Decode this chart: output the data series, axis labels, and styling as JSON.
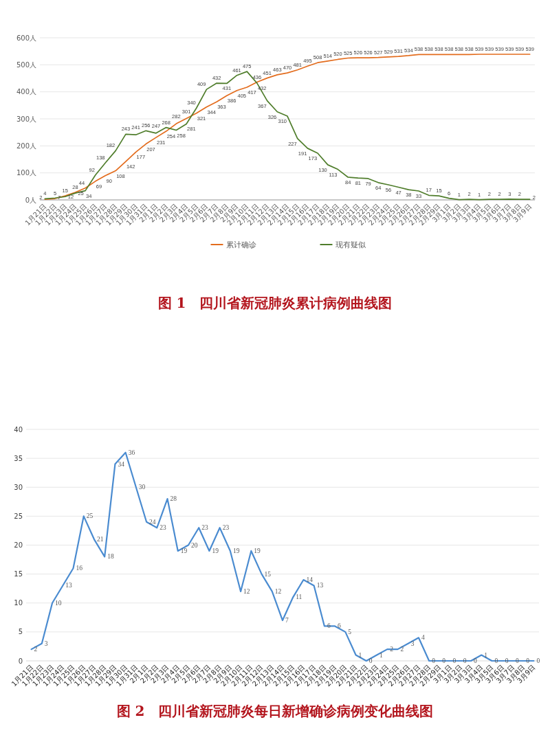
{
  "chart_data": [
    {
      "type": "line",
      "title": "图 1　四川省新冠肺炎累计病例曲线图",
      "categories": [
        "1月21日",
        "1月22日",
        "1月23日",
        "1月24日",
        "1月25日",
        "1月26日",
        "1月27日",
        "1月28日",
        "1月29日",
        "1月30日",
        "1月31日",
        "2月1日",
        "2月2日",
        "2月3日",
        "2月4日",
        "2月5日",
        "2月6日",
        "2月7日",
        "2月8日",
        "2月9日",
        "2月10日",
        "2月11日",
        "2月12日",
        "2月13日",
        "2月14日",
        "2月15日",
        "2月16日",
        "2月17日",
        "2月18日",
        "2月19日",
        "2月20日",
        "2月21日",
        "2月22日",
        "2月23日",
        "2月24日",
        "2月25日",
        "2月26日",
        "2月27日",
        "2月28日",
        "2月29日",
        "3月1日",
        "3月2日",
        "3月3日",
        "3月4日",
        "3月5日",
        "3月6日",
        "3月7日",
        "3月8日",
        "3月9日"
      ],
      "series": [
        {
          "name": "累计确诊",
          "color": "#e36c1d",
          "values": [
            2,
            5,
            15,
            28,
            44,
            69,
            90,
            108,
            142,
            177,
            207,
            231,
            254,
            282,
            301,
            321,
            344,
            363,
            386,
            405,
            417,
            436,
            451,
            463,
            470,
            481,
            495,
            508,
            514,
            520,
            525,
            526,
            526,
            527,
            529,
            531,
            534,
            538,
            538,
            538,
            538,
            538,
            538,
            539,
            539,
            539,
            539,
            539,
            539
          ]
        },
        {
          "name": "现有疑似",
          "color": "#4f7d2b",
          "values": [
            4,
            7,
            12,
            25,
            34,
            92,
            138,
            182,
            243,
            241,
            256,
            247,
            268,
            258,
            281,
            340,
            409,
            432,
            431,
            461,
            475,
            432,
            367,
            326,
            310,
            227,
            191,
            173,
            130,
            113,
            84,
            81,
            79,
            64,
            56,
            47,
            38,
            33,
            17,
            15,
            6,
            1,
            2,
            1,
            2,
            2,
            3,
            2,
            2
          ]
        }
      ],
      "ylim": [
        0,
        600
      ],
      "yticks": [
        {
          "value": 0,
          "label": "0人"
        },
        {
          "value": 100,
          "label": "100人"
        },
        {
          "value": 200,
          "label": "200人"
        },
        {
          "value": 300,
          "label": "300人"
        },
        {
          "value": 400,
          "label": "400人"
        },
        {
          "value": 500,
          "label": "500人"
        },
        {
          "value": 600,
          "label": "600人"
        }
      ],
      "grid": "y",
      "legend": "bottom",
      "data_labels": true
    },
    {
      "type": "line",
      "title": "图 2　四川省新冠肺炎每日新增确诊病例变化曲线图",
      "categories": [
        "1月21日",
        "1月22日",
        "1月23日",
        "1月24日",
        "1月25日",
        "1月26日",
        "1月27日",
        "1月28日",
        "1月29日",
        "1月30日",
        "1月31日",
        "2月1日",
        "2月2日",
        "2月3日",
        "2月4日",
        "2月5日",
        "2月6日",
        "2月7日",
        "2月8日",
        "2月9日",
        "2月10日",
        "2月11日",
        "2月12日",
        "2月13日",
        "2月14日",
        "2月15日",
        "2月16日",
        "2月17日",
        "2月18日",
        "2月19日",
        "2月20日",
        "2月21日",
        "2月22日",
        "2月23日",
        "2月24日",
        "2月25日",
        "2月26日",
        "2月27日",
        "2月28日",
        "2月29日",
        "3月1日",
        "3月2日",
        "3月3日",
        "3月4日",
        "3月5日",
        "3月6日",
        "3月7日",
        "3月8日",
        "3月9日"
      ],
      "series": [
        {
          "color": "#4a8bd0",
          "values": [
            2,
            3,
            10,
            13,
            16,
            25,
            21,
            18,
            34,
            36,
            30,
            24,
            23,
            28,
            19,
            20,
            23,
            19,
            23,
            19,
            12,
            19,
            15,
            12,
            7,
            11,
            14,
            13,
            6,
            6,
            5,
            1,
            0,
            1,
            2,
            2,
            3,
            4,
            0,
            0,
            0,
            0,
            0,
            1,
            0,
            0,
            0,
            0,
            0
          ]
        }
      ],
      "ylim": [
        0,
        40
      ],
      "yticks": [
        0,
        5,
        10,
        15,
        20,
        25,
        30,
        35,
        40
      ],
      "grid": "y",
      "data_labels": true
    }
  ]
}
